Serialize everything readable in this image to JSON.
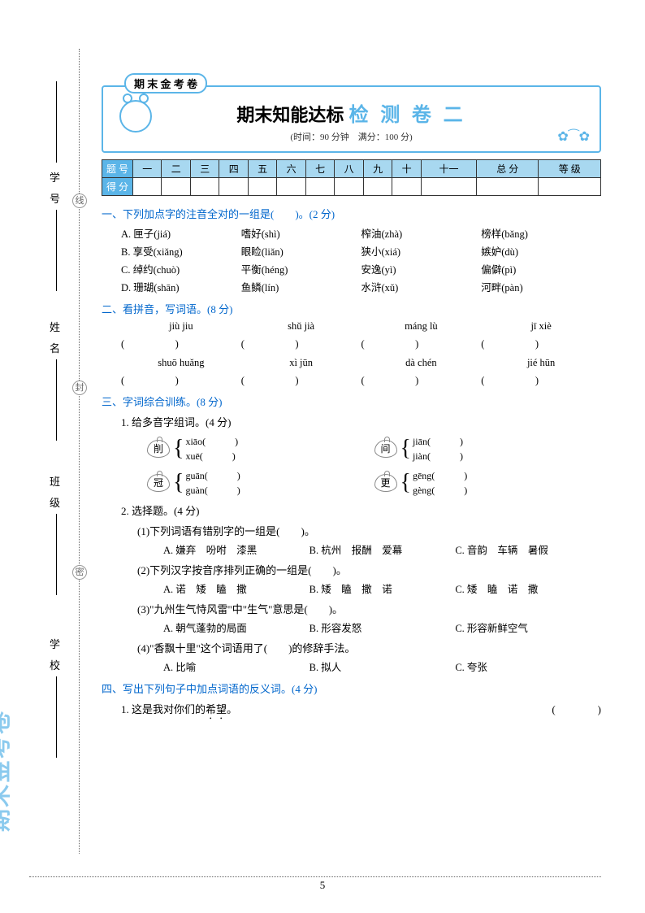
{
  "sidebar": {
    "labels": [
      "学号",
      "姓名",
      "班级",
      "学校"
    ],
    "circles": [
      "线",
      "封",
      "密"
    ]
  },
  "header": {
    "badge": "期 末 金 考 卷",
    "title_black": "期末知能达标",
    "title_blue": "检 测 卷 二",
    "subtitle": "(时间：90 分钟　满分：100 分)"
  },
  "score_table": {
    "row_labels": [
      "题 号",
      "得 分"
    ],
    "cols": [
      "一",
      "二",
      "三",
      "四",
      "五",
      "六",
      "七",
      "八",
      "九",
      "十",
      "十一",
      "总 分",
      "等 级"
    ]
  },
  "q1": {
    "head": "一、下列加点字的注音全对的一组是(　　)。(2 分)",
    "rows": [
      [
        "A. 匣子(jiá)",
        "嗜好(shì)",
        "榨油(zhà)",
        "榜样(bǎng)"
      ],
      [
        "B. 享受(xiǎng)",
        "眼睑(liǎn)",
        "狭小(xiá)",
        "嫉妒(dù)"
      ],
      [
        "C. 绰约(chuò)",
        "平衡(héng)",
        "安逸(yì)",
        "偏僻(pì)"
      ],
      [
        "D. 珊瑚(shān)",
        "鱼鳞(lín)",
        "水浒(xǔ)",
        "河畔(pàn)"
      ]
    ]
  },
  "q2": {
    "head": "二、看拼音，写词语。(8 分)",
    "rows": [
      [
        "jiù jiu",
        "shǔ jià",
        "máng lù",
        "jī xiè"
      ],
      [
        "shuō huǎng",
        "xì jūn",
        "dà chén",
        "jié hūn"
      ]
    ]
  },
  "q3": {
    "head": "三、字词综合训练。(8 分)",
    "p1": "1. 给多音字组词。(4 分)",
    "poly": [
      {
        "char": "削",
        "a": "xiāo(　　　)",
        "b": "xuē(　　　)"
      },
      {
        "char": "间",
        "a": "jiān(　　　)",
        "b": "jiàn(　　　)"
      },
      {
        "char": "冠",
        "a": "guān(　　　)",
        "b": "guàn(　　　)"
      },
      {
        "char": "更",
        "a": "gēng(　　　)",
        "b": "gèng(　　　)"
      }
    ],
    "p2": "2. 选择题。(4 分)",
    "mc": [
      {
        "q": "(1)下列词语有错别字的一组是(　　)。",
        "opts": [
          "A. 嫌弃　吩咐　漆黑",
          "B. 杭州　报酬　爱幕",
          "C. 音韵　车辆　暑假"
        ]
      },
      {
        "q": "(2)下列汉字按音序排列正确的一组是(　　)。",
        "opts": [
          "A. 诺　矮　瞌　撒",
          "B. 矮　瞌　撒　诺",
          "C. 矮　瞌　诺　撒"
        ]
      },
      {
        "q": "(3)\"九州生气恃风雷\"中\"生气\"意思是(　　)。",
        "opts": [
          "A. 朝气蓬勃的局面",
          "B. 形容发怒",
          "C. 形容新鲜空气"
        ]
      },
      {
        "q": "(4)\"香飘十里\"这个词语用了(　　)的修辞手法。",
        "opts": [
          "A. 比喻",
          "B. 拟人",
          "C. 夸张"
        ]
      }
    ]
  },
  "q4": {
    "head": "四、写出下列句子中加点词语的反义词。(4 分)",
    "item": "1. 这是我对你们的",
    "item_u": "希望",
    "tail": "。",
    "blank": "(　　　　)"
  },
  "watermark": "期末金考卷",
  "page_num": "5",
  "colors": {
    "blue": "#0066cc",
    "sky": "#5bb5e8",
    "cell": "#a8d8f0"
  }
}
